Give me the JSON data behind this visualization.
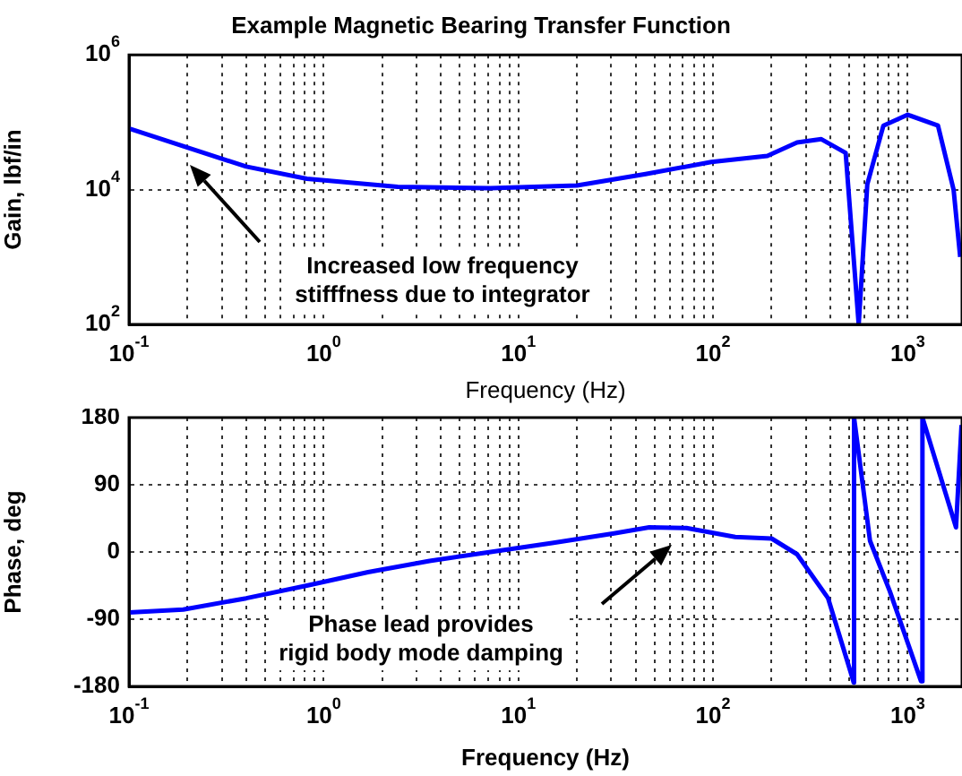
{
  "chart_data": [
    {
      "type": "line",
      "title": "Example Magnetic Bearing Transfer Function",
      "xlabel": "Frequency (Hz)",
      "ylabel": "Gain, lbf/in",
      "log": "xy",
      "grid": true,
      "marker": "none",
      "line_style": "solid",
      "xlim": [
        0.1,
        1900
      ],
      "ylim": [
        100,
        1000000
      ],
      "xticks": [
        {
          "value": 0.1,
          "label": "10$^{-1}$"
        },
        {
          "value": 0.2,
          "label": null
        },
        {
          "value": 0.3,
          "label": null
        },
        {
          "value": 0.4,
          "label": null
        },
        {
          "value": 0.5,
          "label": null
        },
        {
          "value": 0.6,
          "label": null
        },
        {
          "value": 0.7,
          "label": null
        },
        {
          "value": 0.8,
          "label": null
        },
        {
          "value": 0.9,
          "label": null
        },
        {
          "value": 1,
          "label": "10$^{0}$"
        },
        {
          "value": 2,
          "label": null
        },
        {
          "value": 3,
          "label": null
        },
        {
          "value": 4,
          "label": null
        },
        {
          "value": 5,
          "label": null
        },
        {
          "value": 6,
          "label": null
        },
        {
          "value": 7,
          "label": null
        },
        {
          "value": 8,
          "label": null
        },
        {
          "value": 9,
          "label": null
        },
        {
          "value": 10,
          "label": "10$^{1}$"
        },
        {
          "value": 20,
          "label": null
        },
        {
          "value": 30,
          "label": null
        },
        {
          "value": 40,
          "label": null
        },
        {
          "value": 50,
          "label": null
        },
        {
          "value": 60,
          "label": null
        },
        {
          "value": 70,
          "label": null
        },
        {
          "value": 80,
          "label": null
        },
        {
          "value": 90,
          "label": null
        },
        {
          "value": 100,
          "label": "10$^{2}$"
        },
        {
          "value": 200,
          "label": null
        },
        {
          "value": 300,
          "label": null
        },
        {
          "value": 400,
          "label": null
        },
        {
          "value": 500,
          "label": null
        },
        {
          "value": 600,
          "label": null
        },
        {
          "value": 700,
          "label": null
        },
        {
          "value": 800,
          "label": null
        },
        {
          "value": 900,
          "label": null
        },
        {
          "value": 1000,
          "label": "10$^{3}$"
        }
      ],
      "yticks": [
        {
          "value": 100,
          "label": "10$^{2}$"
        },
        {
          "value": 10000,
          "label": "10$^{4}$"
        },
        {
          "value": 1000000,
          "label": "10$^{6}$"
        }
      ],
      "x": [
        0.1,
        0.19,
        0.4,
        0.82,
        2.4,
        7.2,
        20,
        45,
        98,
        190,
        270,
        360,
        480,
        560,
        620,
        750,
        1000,
        1430,
        1720,
        1860
      ],
      "series": [
        {
          "color": "#0000ff",
          "values": [
            81000,
            44000,
            22000,
            14500,
            11000,
            10500,
            11500,
            17000,
            25700,
            31600,
            50000,
            56000,
            35000,
            100,
            12000,
            89000,
            129000,
            89000,
            10000,
            1000
          ]
        }
      ],
      "annotations": [
        "Increased low frequency\nstifffness due to integrator"
      ]
    },
    {
      "type": "line",
      "xlabel": "Frequency (Hz)",
      "ylabel": "Phase, deg",
      "log": "x",
      "grid": true,
      "marker": "none",
      "line_style": "solid",
      "xlim": [
        0.1,
        1900
      ],
      "ylim": [
        -180,
        180
      ],
      "xticks": [
        {
          "value": 0.1,
          "label": "10$^{-1}$"
        },
        {
          "value": 0.2,
          "label": null
        },
        {
          "value": 0.3,
          "label": null
        },
        {
          "value": 0.4,
          "label": null
        },
        {
          "value": 0.5,
          "label": null
        },
        {
          "value": 0.6,
          "label": null
        },
        {
          "value": 0.7,
          "label": null
        },
        {
          "value": 0.8,
          "label": null
        },
        {
          "value": 0.9,
          "label": null
        },
        {
          "value": 1,
          "label": "10$^{0}$"
        },
        {
          "value": 2,
          "label": null
        },
        {
          "value": 3,
          "label": null
        },
        {
          "value": 4,
          "label": null
        },
        {
          "value": 5,
          "label": null
        },
        {
          "value": 6,
          "label": null
        },
        {
          "value": 7,
          "label": null
        },
        {
          "value": 8,
          "label": null
        },
        {
          "value": 9,
          "label": null
        },
        {
          "value": 10,
          "label": "10$^{1}$"
        },
        {
          "value": 20,
          "label": null
        },
        {
          "value": 30,
          "label": null
        },
        {
          "value": 40,
          "label": null
        },
        {
          "value": 50,
          "label": null
        },
        {
          "value": 60,
          "label": null
        },
        {
          "value": 70,
          "label": null
        },
        {
          "value": 80,
          "label": null
        },
        {
          "value": 90,
          "label": null
        },
        {
          "value": 100,
          "label": "10$^{2}$"
        },
        {
          "value": 200,
          "label": null
        },
        {
          "value": 300,
          "label": null
        },
        {
          "value": 400,
          "label": null
        },
        {
          "value": 500,
          "label": null
        },
        {
          "value": 600,
          "label": null
        },
        {
          "value": 700,
          "label": null
        },
        {
          "value": 800,
          "label": null
        },
        {
          "value": 900,
          "label": null
        },
        {
          "value": 1000,
          "label": "10$^{3}$"
        }
      ],
      "yticks": [
        -180,
        -90,
        0,
        90,
        180
      ],
      "x": [
        0.1,
        0.19,
        0.4,
        0.82,
        1.69,
        3.5,
        7.2,
        14.9,
        31,
        47,
        73,
        130,
        200,
        270,
        390,
        520,
        528,
        530,
        640,
        810,
        1170,
        1190,
        1770,
        1890
      ],
      "series": [
        {
          "color": "#0000ff",
          "values": [
            -81,
            -77,
            -62,
            -45,
            -27,
            -12,
            0,
            12,
            25,
            33,
            32,
            20,
            18,
            -3,
            -62,
            -169,
            -175,
            180,
            15,
            -53,
            -173,
            180,
            33,
            170
          ]
        }
      ],
      "annotations": [
        "Phase lead provides\nrigid body mode damping"
      ]
    }
  ]
}
